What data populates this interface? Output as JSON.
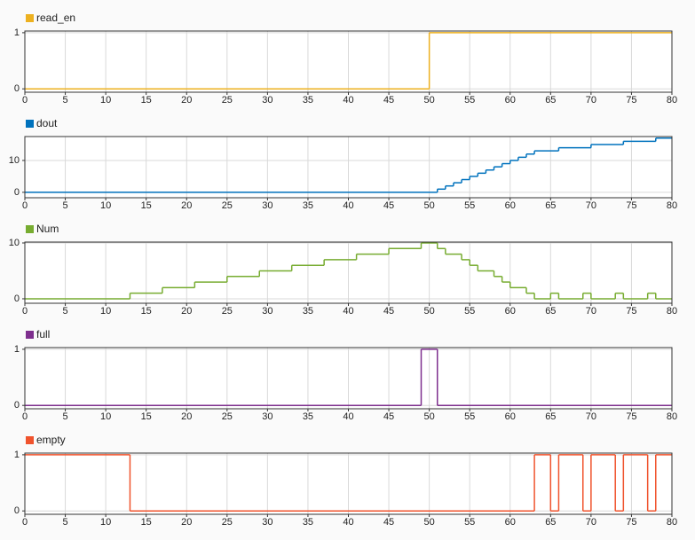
{
  "chart_data": [
    {
      "type": "step",
      "series": [
        {
          "name": "read_en",
          "color": "#edb120",
          "values": [
            0,
            1,
            1
          ]
        }
      ],
      "x": [
        0,
        50,
        80
      ],
      "xlim": [
        0,
        80
      ],
      "xticks": [
        0,
        5,
        10,
        15,
        20,
        25,
        30,
        35,
        40,
        45,
        50,
        55,
        60,
        65,
        70,
        75,
        80
      ],
      "ylim": [
        -0.06,
        1.03
      ],
      "yticks": [
        0,
        1
      ],
      "grid": true
    },
    {
      "type": "step",
      "series": [
        {
          "name": "dout",
          "color": "#0072bd",
          "values": [
            0,
            1,
            2,
            3,
            4,
            5,
            6,
            7,
            8,
            9,
            10,
            11,
            12,
            13,
            14,
            15,
            16,
            17,
            17
          ]
        }
      ],
      "x": [
        0,
        51,
        52,
        53,
        54,
        55,
        56,
        57,
        58,
        59,
        60,
        61,
        62,
        63,
        66,
        70,
        74,
        78,
        80
      ],
      "xlim": [
        0,
        80
      ],
      "xticks": [
        0,
        5,
        10,
        15,
        20,
        25,
        30,
        35,
        40,
        45,
        50,
        55,
        60,
        65,
        70,
        75,
        80
      ],
      "ylim": [
        -1.7,
        17.5
      ],
      "yticks": [
        0,
        10
      ],
      "grid": true
    },
    {
      "type": "step",
      "series": [
        {
          "name": "Num",
          "color": "#77ac30",
          "values": [
            0,
            1,
            2,
            3,
            4,
            5,
            6,
            7,
            8,
            9,
            10,
            9,
            8,
            7,
            6,
            5,
            4,
            3,
            2,
            1,
            0,
            1,
            0,
            1,
            0,
            1,
            0,
            1,
            0,
            0
          ]
        }
      ],
      "x": [
        0,
        13,
        17,
        21,
        25,
        29,
        33,
        37,
        41,
        45,
        49,
        51,
        52,
        54,
        55,
        56,
        58,
        59,
        60,
        62,
        63,
        65,
        66,
        69,
        70,
        73,
        74,
        77,
        78,
        80
      ],
      "xlim": [
        0,
        80
      ],
      "xticks": [
        0,
        5,
        10,
        15,
        20,
        25,
        30,
        35,
        40,
        45,
        50,
        55,
        60,
        65,
        70,
        75,
        80
      ],
      "ylim": [
        -0.8,
        10.16
      ],
      "yticks": [
        0,
        10
      ],
      "grid": true
    },
    {
      "type": "step",
      "series": [
        {
          "name": "full",
          "color": "#7e2f8e",
          "values": [
            0,
            1,
            0,
            0
          ]
        }
      ],
      "x": [
        0,
        49,
        51,
        80
      ],
      "xlim": [
        0,
        80
      ],
      "xticks": [
        0,
        5,
        10,
        15,
        20,
        25,
        30,
        35,
        40,
        45,
        50,
        55,
        60,
        65,
        70,
        75,
        80
      ],
      "ylim": [
        -0.06,
        1.03
      ],
      "yticks": [
        0,
        1
      ],
      "grid": true
    },
    {
      "type": "step",
      "series": [
        {
          "name": "empty",
          "color": "#f0532d",
          "values": [
            1,
            0,
            1,
            0,
            1,
            0,
            1,
            0,
            1,
            0,
            1,
            1
          ]
        }
      ],
      "x": [
        0,
        13,
        63,
        65,
        66,
        69,
        70,
        73,
        74,
        77,
        78,
        80
      ],
      "xlim": [
        0,
        80
      ],
      "xticks": [
        0,
        5,
        10,
        15,
        20,
        25,
        30,
        35,
        40,
        45,
        50,
        55,
        60,
        65,
        70,
        75,
        80
      ],
      "ylim": [
        -0.06,
        1.03
      ],
      "yticks": [
        0,
        1
      ],
      "grid": true
    }
  ]
}
